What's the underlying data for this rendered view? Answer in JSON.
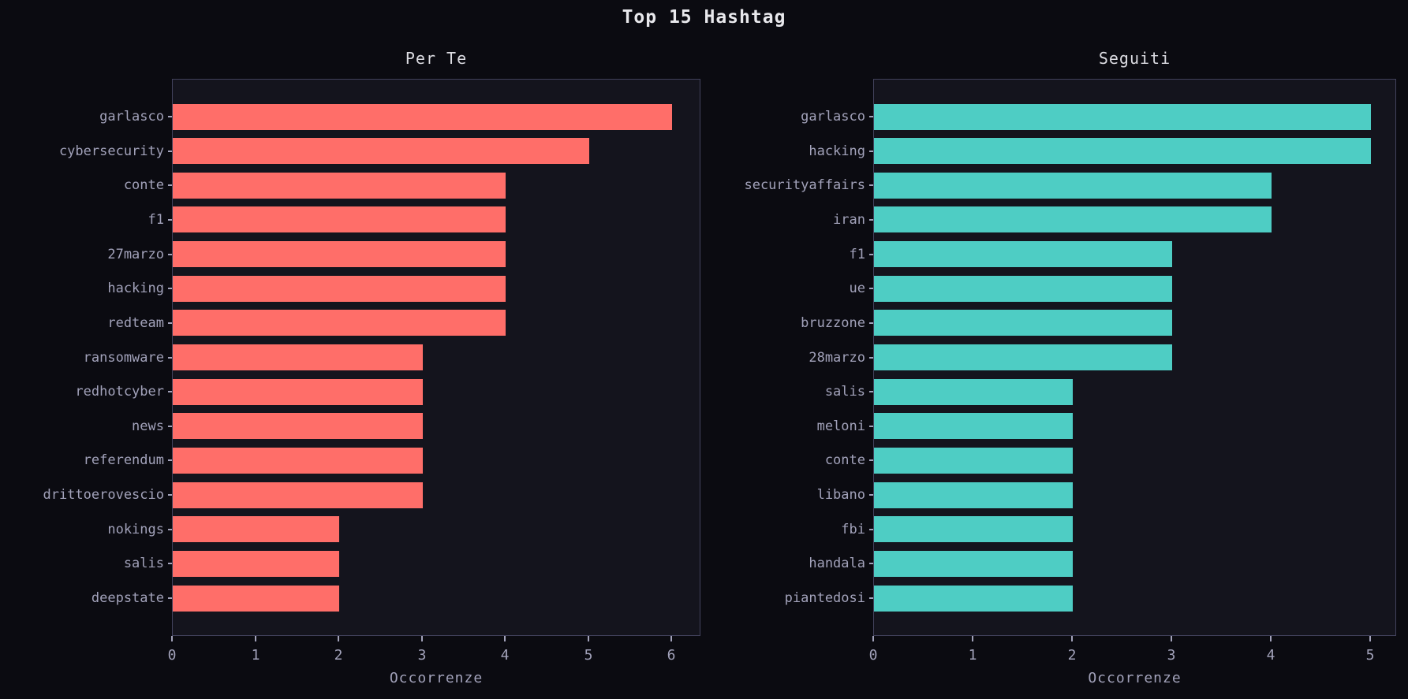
{
  "figure": {
    "title": "Top 15 Hashtag",
    "background_color": "#0b0b11",
    "plot_background_color": "#14141d",
    "spine_color": "#42425c",
    "tick_label_color": "#a2a2ba",
    "title_color": "#e8e8ec"
  },
  "chart_data": [
    {
      "type": "bar",
      "orientation": "horizontal",
      "title": "Per Te",
      "xlabel": "Occorrenze",
      "categories": [
        "garlasco",
        "cybersecurity",
        "conte",
        "f1",
        "27marzo",
        "hacking",
        "redteam",
        "ransomware",
        "redhotcyber",
        "news",
        "referendum",
        "drittoerovescio",
        "nokings",
        "salis",
        "deepstate"
      ],
      "values": [
        6,
        5,
        4,
        4,
        4,
        4,
        4,
        3,
        3,
        3,
        3,
        3,
        2,
        2,
        2
      ],
      "bar_color": "#ff6e69",
      "xticks": [
        0,
        1,
        2,
        3,
        4,
        5,
        6
      ],
      "xlim": [
        0,
        6.35
      ],
      "grid": false,
      "legend": null
    },
    {
      "type": "bar",
      "orientation": "horizontal",
      "title": "Seguiti",
      "xlabel": "Occorrenze",
      "categories": [
        "garlasco",
        "hacking",
        "securityaffairs",
        "iran",
        "f1",
        "ue",
        "bruzzone",
        "28marzo",
        "salis",
        "meloni",
        "conte",
        "libano",
        "fbi",
        "handala",
        "piantedosi"
      ],
      "values": [
        5,
        5,
        4,
        4,
        3,
        3,
        3,
        3,
        2,
        2,
        2,
        2,
        2,
        2,
        2
      ],
      "bar_color": "#4ecdc4",
      "xticks": [
        0,
        1,
        2,
        3,
        4,
        5
      ],
      "xlim": [
        0,
        5.26
      ],
      "grid": false,
      "legend": null
    }
  ]
}
